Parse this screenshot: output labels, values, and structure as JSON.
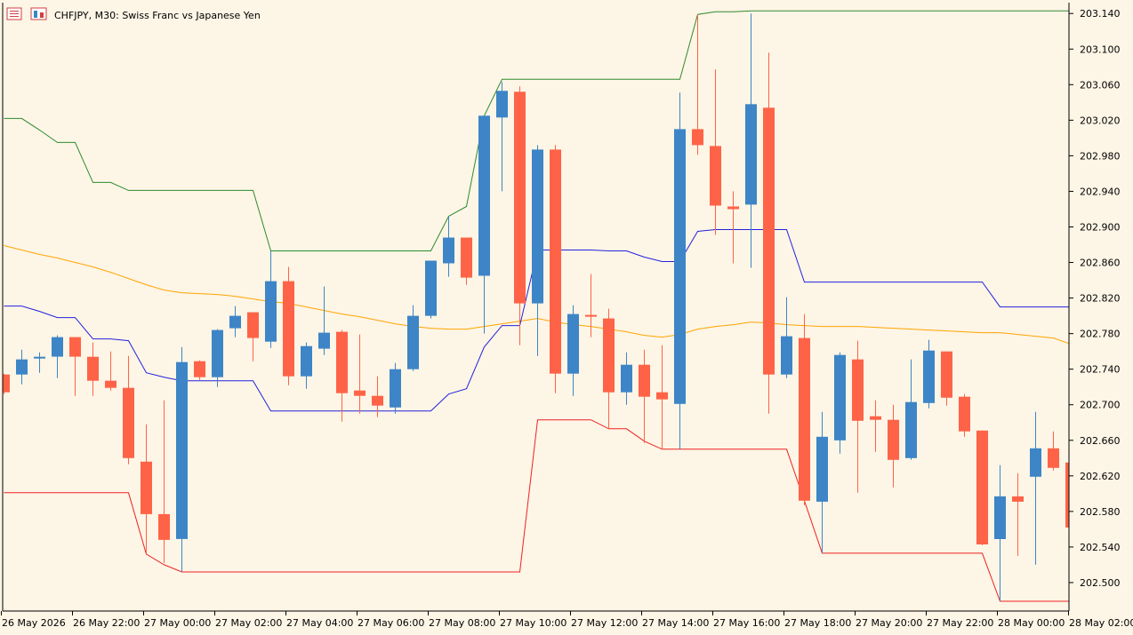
{
  "header": {
    "title": "CHFJPY, M30:  Swiss Franc vs Japanese Yen",
    "menu_icon": "list-menu-icon",
    "chart_icon": "chart-window-icon"
  },
  "colors": {
    "background": "#fdf5e6",
    "bull": "#3d85c6",
    "bear": "#ff6347",
    "upper_band": "#2e8b2e",
    "lower_band": "#ee2222",
    "mid_band": "#2222dd",
    "moving_average": "#ffa500",
    "axis": "#000000"
  },
  "chart_data": {
    "type": "candlestick",
    "symbol": "CHFJPY",
    "timeframe": "M30",
    "ylim": [
      202.47,
      203.15
    ],
    "y_ticks": [
      "203.140",
      "203.100",
      "203.060",
      "203.020",
      "202.980",
      "202.940",
      "202.900",
      "202.860",
      "202.820",
      "202.780",
      "202.740",
      "202.700",
      "202.660",
      "202.620",
      "202.580",
      "202.540",
      "202.500"
    ],
    "x_ticks": [
      {
        "label": "26 May 2026",
        "bar": 0
      },
      {
        "label": "26 May 22:00",
        "bar": 4
      },
      {
        "label": "27 May 00:00",
        "bar": 8
      },
      {
        "label": "27 May 02:00",
        "bar": 12
      },
      {
        "label": "27 May 04:00",
        "bar": 16
      },
      {
        "label": "27 May 06:00",
        "bar": 20
      },
      {
        "label": "27 May 08:00",
        "bar": 24
      },
      {
        "label": "27 May 10:00",
        "bar": 28
      },
      {
        "label": "27 May 12:00",
        "bar": 32
      },
      {
        "label": "27 May 14:00",
        "bar": 36
      },
      {
        "label": "27 May 16:00",
        "bar": 40
      },
      {
        "label": "27 May 18:00",
        "bar": 44
      },
      {
        "label": "27 May 20:00",
        "bar": 48
      },
      {
        "label": "27 May 22:00",
        "bar": 52
      },
      {
        "label": "28 May 00:00",
        "bar": 56
      },
      {
        "label": "28 May 02:00",
        "bar": 60
      }
    ],
    "candles": [
      {
        "o": 202.734,
        "h": 202.735,
        "c": 202.714,
        "l": 202.712
      },
      {
        "o": 202.734,
        "h": 202.762,
        "c": 202.751,
        "l": 202.723
      },
      {
        "o": 202.752,
        "h": 202.759,
        "c": 202.754,
        "l": 202.736
      },
      {
        "o": 202.754,
        "h": 202.778,
        "c": 202.776,
        "l": 202.73
      },
      {
        "o": 202.776,
        "h": 202.776,
        "c": 202.754,
        "l": 202.71
      },
      {
        "o": 202.754,
        "h": 202.77,
        "c": 202.727,
        "l": 202.71
      },
      {
        "o": 202.727,
        "h": 202.76,
        "c": 202.719,
        "l": 202.716
      },
      {
        "o": 202.719,
        "h": 202.755,
        "c": 202.64,
        "l": 202.633
      },
      {
        "o": 202.636,
        "h": 202.678,
        "c": 202.577,
        "l": 202.533
      },
      {
        "o": 202.577,
        "h": 202.705,
        "c": 202.548,
        "l": 202.522
      },
      {
        "o": 202.549,
        "h": 202.765,
        "c": 202.748,
        "l": 202.512
      },
      {
        "o": 202.749,
        "h": 202.75,
        "c": 202.731,
        "l": 202.728
      },
      {
        "o": 202.731,
        "h": 202.785,
        "c": 202.784,
        "l": 202.72
      },
      {
        "o": 202.786,
        "h": 202.811,
        "c": 202.8,
        "l": 202.776
      },
      {
        "o": 202.804,
        "h": 202.804,
        "c": 202.775,
        "l": 202.749
      },
      {
        "o": 202.771,
        "h": 202.873,
        "c": 202.839,
        "l": 202.764
      },
      {
        "o": 202.839,
        "h": 202.855,
        "c": 202.732,
        "l": 202.722
      },
      {
        "o": 202.732,
        "h": 202.77,
        "c": 202.766,
        "l": 202.718
      },
      {
        "o": 202.763,
        "h": 202.833,
        "c": 202.781,
        "l": 202.756
      },
      {
        "o": 202.782,
        "h": 202.784,
        "c": 202.713,
        "l": 202.681
      },
      {
        "o": 202.716,
        "h": 202.779,
        "c": 202.71,
        "l": 202.69
      },
      {
        "o": 202.71,
        "h": 202.732,
        "c": 202.699,
        "l": 202.686
      },
      {
        "o": 202.697,
        "h": 202.747,
        "c": 202.74,
        "l": 202.69
      },
      {
        "o": 202.74,
        "h": 202.812,
        "c": 202.8,
        "l": 202.738
      },
      {
        "o": 202.8,
        "h": 202.862,
        "c": 202.862,
        "l": 202.797
      },
      {
        "o": 202.859,
        "h": 202.912,
        "c": 202.888,
        "l": 202.844
      },
      {
        "o": 202.888,
        "h": 202.888,
        "c": 202.843,
        "l": 202.835
      },
      {
        "o": 202.845,
        "h": 203.025,
        "c": 203.025,
        "l": 202.78
      },
      {
        "o": 203.023,
        "h": 203.063,
        "c": 203.053,
        "l": 202.94
      },
      {
        "o": 203.052,
        "h": 203.058,
        "c": 202.814,
        "l": 202.767
      },
      {
        "o": 202.814,
        "h": 202.992,
        "c": 202.987,
        "l": 202.755
      },
      {
        "o": 202.987,
        "h": 202.992,
        "c": 202.735,
        "l": 202.713
      },
      {
        "o": 202.735,
        "h": 202.812,
        "c": 202.802,
        "l": 202.71
      },
      {
        "o": 202.801,
        "h": 202.847,
        "c": 202.799,
        "l": 202.776
      },
      {
        "o": 202.797,
        "h": 202.808,
        "c": 202.714,
        "l": 202.673
      },
      {
        "o": 202.714,
        "h": 202.759,
        "c": 202.745,
        "l": 202.7
      },
      {
        "o": 202.745,
        "h": 202.762,
        "c": 202.709,
        "l": 202.657
      },
      {
        "o": 202.714,
        "h": 202.767,
        "c": 202.706,
        "l": 202.65
      },
      {
        "o": 202.701,
        "h": 203.051,
        "c": 203.01,
        "l": 202.65
      },
      {
        "o": 203.01,
        "h": 203.139,
        "c": 202.992,
        "l": 202.981
      },
      {
        "o": 202.991,
        "h": 203.077,
        "c": 202.924,
        "l": 202.891
      },
      {
        "o": 202.923,
        "h": 202.94,
        "c": 202.92,
        "l": 202.859
      },
      {
        "o": 202.925,
        "h": 203.14,
        "c": 203.038,
        "l": 202.854
      },
      {
        "o": 203.034,
        "h": 203.096,
        "c": 202.734,
        "l": 202.69
      },
      {
        "o": 202.734,
        "h": 202.821,
        "c": 202.777,
        "l": 202.73
      },
      {
        "o": 202.775,
        "h": 202.802,
        "c": 202.592,
        "l": 202.587
      },
      {
        "o": 202.591,
        "h": 202.692,
        "c": 202.664,
        "l": 202.533
      },
      {
        "o": 202.66,
        "h": 202.759,
        "c": 202.756,
        "l": 202.645
      },
      {
        "o": 202.751,
        "h": 202.772,
        "c": 202.682,
        "l": 202.601
      },
      {
        "o": 202.687,
        "h": 202.705,
        "c": 202.683,
        "l": 202.647
      },
      {
        "o": 202.683,
        "h": 202.7,
        "c": 202.638,
        "l": 202.607
      },
      {
        "o": 202.64,
        "h": 202.751,
        "c": 202.703,
        "l": 202.638
      },
      {
        "o": 202.702,
        "h": 202.773,
        "c": 202.761,
        "l": 202.696
      },
      {
        "o": 202.76,
        "h": 202.76,
        "c": 202.708,
        "l": 202.699
      },
      {
        "o": 202.709,
        "h": 202.712,
        "c": 202.67,
        "l": 202.664
      },
      {
        "o": 202.671,
        "h": 202.671,
        "c": 202.543,
        "l": 202.542
      },
      {
        "o": 202.549,
        "h": 202.632,
        "c": 202.597,
        "l": 202.479
      },
      {
        "o": 202.597,
        "h": 202.623,
        "c": 202.591,
        "l": 202.53
      },
      {
        "o": 202.619,
        "h": 202.692,
        "c": 202.651,
        "l": 202.52
      },
      {
        "o": 202.651,
        "h": 202.67,
        "c": 202.629,
        "l": 202.626
      },
      {
        "o": 202.635,
        "h": 202.67,
        "c": 202.562,
        "l": 202.558
      }
    ],
    "upper_band": [
      203.022,
      203.022,
      203.009,
      202.995,
      202.995,
      202.95,
      202.95,
      202.941,
      202.941,
      202.941,
      202.941,
      202.941,
      202.941,
      202.941,
      202.941,
      202.873,
      202.873,
      202.873,
      202.873,
      202.873,
      202.873,
      202.873,
      202.873,
      202.873,
      202.873,
      202.912,
      202.923,
      203.025,
      203.066,
      203.066,
      203.066,
      203.066,
      203.066,
      203.066,
      203.066,
      203.066,
      203.066,
      203.066,
      203.066,
      203.139,
      203.142,
      203.142,
      203.143,
      203.143,
      203.143,
      203.143,
      203.143,
      203.143,
      203.143,
      203.143,
      203.143,
      203.143,
      203.143,
      203.143,
      203.143,
      203.143,
      203.143,
      203.143,
      203.143,
      203.143,
      203.143
    ],
    "mid_band": [
      202.811,
      202.811,
      202.805,
      202.798,
      202.798,
      202.774,
      202.774,
      202.772,
      202.736,
      202.731,
      202.727,
      202.727,
      202.727,
      202.727,
      202.727,
      202.693,
      202.693,
      202.693,
      202.693,
      202.693,
      202.693,
      202.693,
      202.693,
      202.693,
      202.693,
      202.712,
      202.718,
      202.765,
      202.789,
      202.789,
      202.874,
      202.874,
      202.874,
      202.874,
      202.873,
      202.873,
      202.866,
      202.861,
      202.861,
      202.895,
      202.897,
      202.897,
      202.897,
      202.897,
      202.897,
      202.838,
      202.838,
      202.838,
      202.838,
      202.838,
      202.838,
      202.838,
      202.838,
      202.838,
      202.838,
      202.838,
      202.81,
      202.81,
      202.81,
      202.81,
      202.81
    ],
    "lower_band": [
      202.601,
      202.601,
      202.601,
      202.601,
      202.601,
      202.601,
      202.601,
      202.601,
      202.532,
      202.52,
      202.512,
      202.512,
      202.512,
      202.512,
      202.512,
      202.512,
      202.512,
      202.512,
      202.512,
      202.512,
      202.512,
      202.512,
      202.512,
      202.512,
      202.512,
      202.512,
      202.512,
      202.512,
      202.512,
      202.512,
      202.683,
      202.683,
      202.683,
      202.683,
      202.673,
      202.673,
      202.659,
      202.65,
      202.65,
      202.65,
      202.65,
      202.65,
      202.65,
      202.65,
      202.65,
      202.592,
      202.533,
      202.533,
      202.533,
      202.533,
      202.533,
      202.533,
      202.533,
      202.533,
      202.533,
      202.533,
      202.479,
      202.479,
      202.479,
      202.479,
      202.479
    ],
    "moving_average": [
      202.879,
      202.874,
      202.869,
      202.865,
      202.86,
      202.855,
      202.849,
      202.842,
      202.835,
      202.829,
      202.826,
      202.825,
      202.824,
      202.822,
      202.819,
      202.816,
      202.814,
      202.81,
      202.806,
      202.802,
      202.799,
      202.795,
      202.791,
      202.788,
      202.786,
      202.785,
      202.785,
      202.788,
      202.791,
      202.794,
      202.797,
      202.793,
      202.79,
      202.788,
      202.785,
      202.782,
      202.778,
      202.776,
      202.779,
      202.785,
      202.788,
      202.79,
      202.793,
      202.792,
      202.79,
      202.789,
      202.788,
      202.788,
      202.788,
      202.787,
      202.786,
      202.785,
      202.784,
      202.783,
      202.782,
      202.781,
      202.781,
      202.779,
      202.777,
      202.775,
      202.768
    ]
  }
}
